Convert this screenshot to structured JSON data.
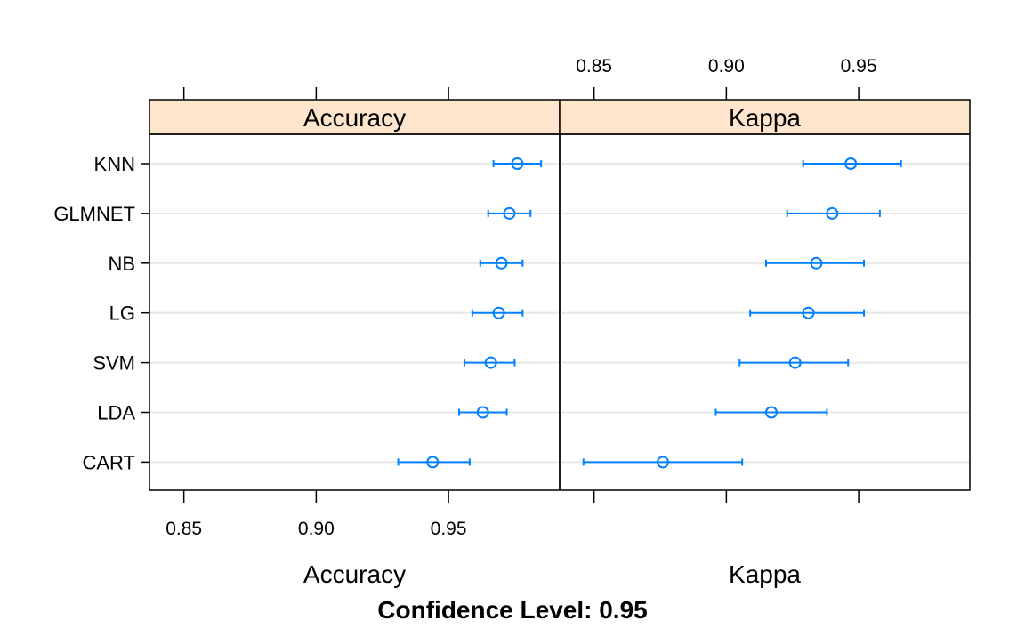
{
  "chart_data": {
    "type": "dotplot",
    "caption": "Confidence Level: 0.95",
    "categories": [
      "KNN",
      "GLMNET",
      "NB",
      "LG",
      "SVM",
      "LDA",
      "CART"
    ],
    "colors": {
      "point": "#0080ff",
      "strip_bg": "#ffe5cc",
      "grid": "#e6e6e6",
      "frame": "#000000"
    },
    "panels": [
      {
        "strip": "Accuracy",
        "xlabel": "Accuracy",
        "xlim": [
          0.837,
          0.992
        ],
        "ticks": [
          0.85,
          0.9,
          0.95
        ],
        "tick_labels": [
          "0.85",
          "0.90",
          "0.95"
        ],
        "tick_side": "bottom",
        "series": [
          {
            "category": "KNN",
            "estimate": 0.976,
            "lower": 0.967,
            "upper": 0.985
          },
          {
            "category": "GLMNET",
            "estimate": 0.973,
            "lower": 0.965,
            "upper": 0.981
          },
          {
            "category": "NB",
            "estimate": 0.97,
            "lower": 0.962,
            "upper": 0.978
          },
          {
            "category": "LG",
            "estimate": 0.969,
            "lower": 0.959,
            "upper": 0.978
          },
          {
            "category": "SVM",
            "estimate": 0.966,
            "lower": 0.956,
            "upper": 0.975
          },
          {
            "category": "LDA",
            "estimate": 0.963,
            "lower": 0.954,
            "upper": 0.972
          },
          {
            "category": "CART",
            "estimate": 0.944,
            "lower": 0.931,
            "upper": 0.958
          }
        ]
      },
      {
        "strip": "Kappa",
        "xlabel": "Kappa",
        "xlim": [
          0.837,
          0.992
        ],
        "ticks": [
          0.85,
          0.9,
          0.95
        ],
        "tick_labels": [
          "0.85",
          "0.90",
          "0.95"
        ],
        "tick_side": "top",
        "series": [
          {
            "category": "KNN",
            "estimate": 0.947,
            "lower": 0.929,
            "upper": 0.966
          },
          {
            "category": "GLMNET",
            "estimate": 0.94,
            "lower": 0.923,
            "upper": 0.958
          },
          {
            "category": "NB",
            "estimate": 0.934,
            "lower": 0.915,
            "upper": 0.952
          },
          {
            "category": "LG",
            "estimate": 0.931,
            "lower": 0.909,
            "upper": 0.952
          },
          {
            "category": "SVM",
            "estimate": 0.926,
            "lower": 0.905,
            "upper": 0.946
          },
          {
            "category": "LDA",
            "estimate": 0.917,
            "lower": 0.896,
            "upper": 0.938
          },
          {
            "category": "CART",
            "estimate": 0.876,
            "lower": 0.846,
            "upper": 0.906
          }
        ]
      }
    ]
  }
}
